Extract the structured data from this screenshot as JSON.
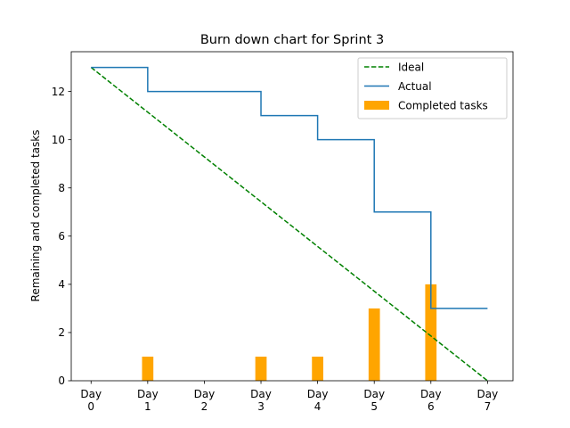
{
  "chart_data": {
    "type": "bar+line",
    "title": "Burn down chart for Sprint 3",
    "xlabel": "",
    "ylabel": "Remaining and completed tasks",
    "x": [
      0,
      1,
      2,
      3,
      4,
      5,
      6,
      7
    ],
    "tick_labels": [
      [
        "Day",
        "0"
      ],
      [
        "Day",
        "1"
      ],
      [
        "Day",
        "2"
      ],
      [
        "Day",
        "3"
      ],
      [
        "Day",
        "4"
      ],
      [
        "Day",
        "5"
      ],
      [
        "Day",
        "6"
      ],
      [
        "Day",
        "7"
      ]
    ],
    "xlim": [
      -0.35,
      7.45
    ],
    "ylim": [
      0,
      13.65
    ],
    "yticks": [
      0,
      2,
      4,
      6,
      8,
      10,
      12
    ],
    "grid": false,
    "legend_position": "top-right",
    "series": [
      {
        "name": "Ideal",
        "kind": "line",
        "style": "dashed",
        "color": "#008000",
        "x": [
          0,
          7
        ],
        "values": [
          13,
          0
        ]
      },
      {
        "name": "Actual",
        "kind": "step",
        "color": "#1f77b4",
        "x": [
          0,
          1,
          2,
          3,
          4,
          5,
          6,
          7
        ],
        "values": [
          13,
          12,
          12,
          11,
          10,
          7,
          3,
          3
        ]
      },
      {
        "name": "Completed tasks",
        "kind": "bar",
        "color": "#ffa500",
        "x": [
          0,
          1,
          2,
          3,
          4,
          5,
          6,
          7
        ],
        "values": [
          0,
          1,
          0,
          1,
          1,
          3,
          4,
          0
        ]
      }
    ]
  }
}
